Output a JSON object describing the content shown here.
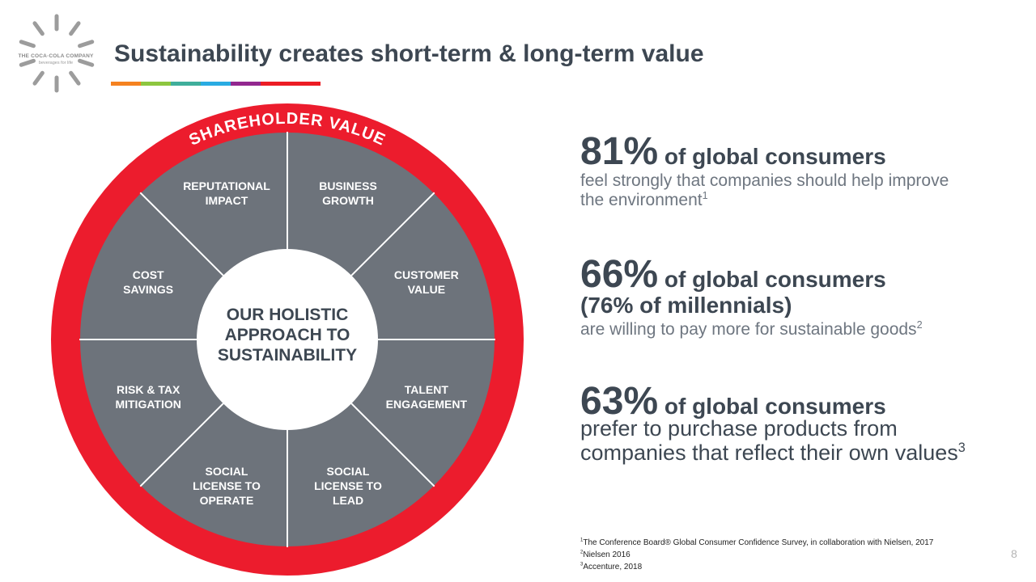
{
  "logo": {
    "brand": "THE COCA·COLA COMPANY",
    "tagline": "beverages for life",
    "colors": {
      "icon": "#9c9c9c"
    }
  },
  "title": "Sustainability creates short-term & long-term value",
  "title_bar_colors": [
    "#f58220",
    "#8dc63f",
    "#3fae9b",
    "#29abe2",
    "#92278f",
    "#ec1c24",
    "#ec1c24"
  ],
  "wheel": {
    "ring_label": "SHAREHOLDER VALUE",
    "segments": [
      {
        "lines": [
          "REPUTATIONAL",
          "IMPACT"
        ]
      },
      {
        "lines": [
          "BUSINESS",
          "GROWTH"
        ]
      },
      {
        "lines": [
          "CUSTOMER",
          "VALUE"
        ]
      },
      {
        "lines": [
          "TALENT",
          "ENGAGEMENT"
        ]
      },
      {
        "lines": [
          "SOCIAL",
          "LICENSE TO",
          "LEAD"
        ]
      },
      {
        "lines": [
          "SOCIAL",
          "LICENSE TO",
          "OPERATE"
        ]
      },
      {
        "lines": [
          "RISK & TAX",
          "MITIGATION"
        ]
      },
      {
        "lines": [
          "COST",
          "SAVINGS"
        ]
      }
    ],
    "center_lines": [
      "OUR HOLISTIC",
      "APPROACH TO",
      "SUSTAINABILITY"
    ],
    "colors": {
      "ring": "#ec1c2d",
      "segment": "#6d737b",
      "divider": "#ffffff",
      "center": "#ffffff",
      "center_text": "#3d4752"
    }
  },
  "stats": [
    {
      "pct": "81%",
      "head": " of global consumers",
      "body_lines": [
        "feel strongly that companies should help improve",
        "the environment"
      ],
      "sup": "1"
    },
    {
      "pct": "66%",
      "head": " of global consumers",
      "sub_head": "(76% of millennials)",
      "body_lines": [
        "are willing to pay more for sustainable goods"
      ],
      "sup": "2"
    },
    {
      "pct": "63%",
      "head": " of global consumers",
      "body_lines": [
        "prefer to purchase products from",
        "companies that reflect their own values"
      ],
      "sup": "3"
    }
  ],
  "footnotes": [
    {
      "num": "1",
      "text": "The Conference Board® Global Consumer Confidence Survey, in collaboration with Nielsen, 2017"
    },
    {
      "num": "2",
      "text": "Nielsen 2016"
    },
    {
      "num": "3",
      "text": "Accenture, 2018"
    }
  ],
  "page_number": "8"
}
